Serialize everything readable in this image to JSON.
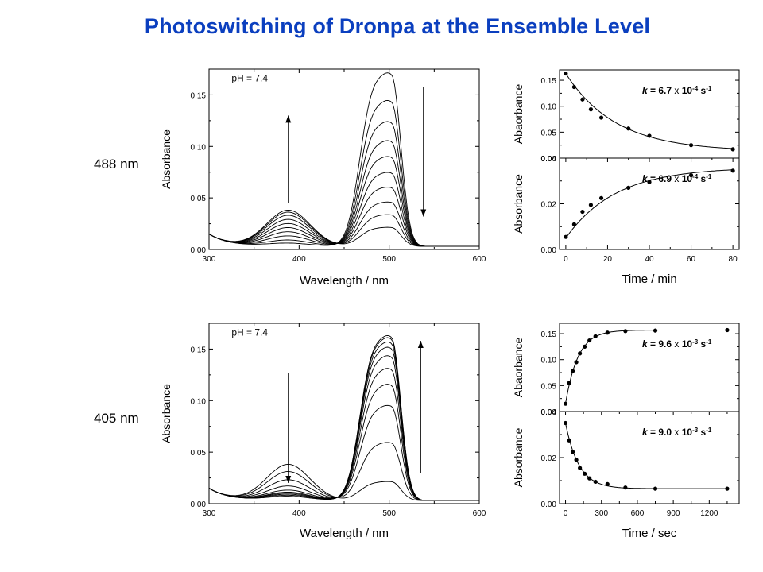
{
  "title": "Photoswitching of Dronpa at the Ensemble Level",
  "row_labels": [
    "488 nm",
    "405 nm"
  ],
  "chart_data": [
    {
      "id": "spec488",
      "type": "line",
      "xlabel": "Wavelength / nm",
      "ylabel": "Absorbance",
      "xlim": [
        300,
        600
      ],
      "ylim": [
        0,
        0.175
      ],
      "xticks": [
        300,
        400,
        500,
        600
      ],
      "yticks": [
        0.0,
        0.05,
        0.1,
        0.15
      ],
      "annotation": "pH = 7.4",
      "arrows": [
        {
          "x": 388,
          "y_from": 0.045,
          "y_to": 0.13
        },
        {
          "x": 538,
          "y_from": 0.158,
          "y_to": 0.032
        }
      ],
      "anionic_peaks": [
        0.164,
        0.138,
        0.118,
        0.1,
        0.085,
        0.07,
        0.056,
        0.042,
        0.03,
        0.018
      ],
      "neutral_peaks": [
        0.003,
        0.006,
        0.01,
        0.014,
        0.018,
        0.022,
        0.026,
        0.03,
        0.033,
        0.035
      ],
      "grid": false
    },
    {
      "id": "spec405",
      "type": "line",
      "xlabel": "Wavelength / nm",
      "ylabel": "Absorbance",
      "xlim": [
        300,
        600
      ],
      "ylim": [
        0,
        0.175
      ],
      "xticks": [
        300,
        400,
        500,
        600
      ],
      "yticks": [
        0.0,
        0.05,
        0.1,
        0.15
      ],
      "annotation": "pH = 7.4",
      "arrows": [
        {
          "x": 388,
          "y_from": 0.127,
          "y_to": 0.02
        },
        {
          "x": 535,
          "y_from": 0.03,
          "y_to": 0.158
        }
      ],
      "anionic_peaks": [
        0.156,
        0.154,
        0.15,
        0.145,
        0.137,
        0.125,
        0.11,
        0.09,
        0.055,
        0.018
      ],
      "neutral_peaks": [
        0.004,
        0.005,
        0.006,
        0.007,
        0.008,
        0.01,
        0.014,
        0.02,
        0.028,
        0.035
      ],
      "grid": false
    },
    {
      "id": "k488top",
      "type": "scatter",
      "xlabel": "",
      "ylabel": "Abaorbance",
      "xlim": [
        -3,
        83
      ],
      "ylim": [
        0,
        0.17
      ],
      "yticks": [
        0.0,
        0.05,
        0.1,
        0.15
      ],
      "x": [
        0,
        4,
        8,
        12,
        17,
        30,
        40,
        60,
        80
      ],
      "y": [
        0.163,
        0.137,
        0.113,
        0.094,
        0.078,
        0.057,
        0.043,
        0.025,
        0.017
      ],
      "annotation": {
        "k": "k",
        "eq": " = 6.7",
        "x": " x ",
        "ten": "10",
        "exp": "-4",
        "unit": " s",
        "uexp": "-1"
      },
      "grid": false
    },
    {
      "id": "k488bot",
      "type": "scatter",
      "xlabel": "Time / min",
      "ylabel": "Absorbance",
      "xlim": [
        -3,
        83
      ],
      "ylim": [
        0,
        0.04
      ],
      "yticks": [
        0.0,
        0.02,
        0.04
      ],
      "xticks": [
        0,
        20,
        40,
        60,
        80
      ],
      "x": [
        0,
        4,
        8,
        12,
        17,
        30,
        40,
        60,
        80
      ],
      "y": [
        0.0055,
        0.011,
        0.0165,
        0.0195,
        0.0225,
        0.027,
        0.0295,
        0.0325,
        0.0345
      ],
      "annotation": {
        "k": "k",
        "eq": " = 6.9",
        "x": " x ",
        "ten": "10",
        "exp": "-4",
        "unit": " s",
        "uexp": "-1"
      },
      "grid": false
    },
    {
      "id": "k405top",
      "type": "scatter",
      "xlabel": "",
      "ylabel": "Abaorbance",
      "xlim": [
        -50,
        1450
      ],
      "ylim": [
        0,
        0.17
      ],
      "yticks": [
        0.0,
        0.05,
        0.1,
        0.15
      ],
      "x": [
        0,
        30,
        60,
        90,
        120,
        160,
        200,
        250,
        350,
        500,
        750,
        1350
      ],
      "y": [
        0.015,
        0.055,
        0.078,
        0.095,
        0.112,
        0.125,
        0.137,
        0.145,
        0.152,
        0.155,
        0.156,
        0.157
      ],
      "annotation": {
        "k": "k",
        "eq": " = 9.6",
        "x": " x ",
        "ten": "10",
        "exp": "-3",
        "unit": " s",
        "uexp": "-1"
      },
      "grid": false
    },
    {
      "id": "k405bot",
      "type": "scatter",
      "xlabel": "Time / sec",
      "ylabel": "Absorbance",
      "xlim": [
        -50,
        1450
      ],
      "ylim": [
        0,
        0.04
      ],
      "yticks": [
        0.0,
        0.02,
        0.04
      ],
      "xticks": [
        0,
        300,
        600,
        900,
        1200
      ],
      "x": [
        0,
        30,
        60,
        90,
        120,
        160,
        200,
        250,
        350,
        500,
        750,
        1350
      ],
      "y": [
        0.035,
        0.0275,
        0.0225,
        0.019,
        0.0155,
        0.013,
        0.011,
        0.0095,
        0.0085,
        0.007,
        0.0065,
        0.0065
      ],
      "annotation": {
        "k": "k",
        "eq": " = 9.0",
        "x": " x ",
        "ten": "10",
        "exp": "-3",
        "unit": " s",
        "uexp": "-1"
      },
      "grid": false
    }
  ]
}
